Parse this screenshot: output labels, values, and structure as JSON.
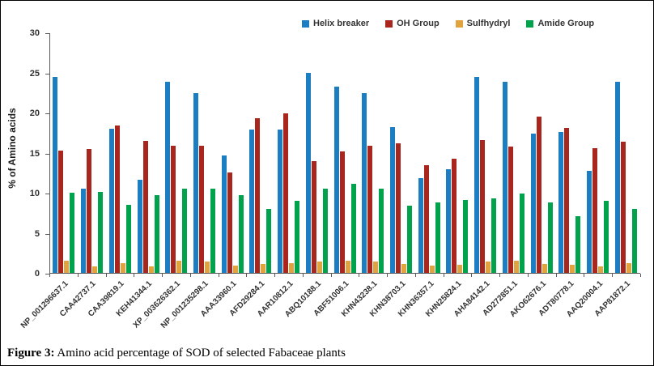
{
  "figure": {
    "caption_label": "Figure 3:",
    "caption_text": " Amino acid percentage of SOD of selected Fabaceae plants"
  },
  "chart_data": {
    "type": "bar",
    "title": "",
    "xlabel": "",
    "ylabel": "% of Amino acids",
    "ylim": [
      0,
      30
    ],
    "yticks": [
      0,
      5,
      10,
      15,
      20,
      25,
      30
    ],
    "grid": false,
    "legend_position": "top",
    "categories": [
      "NP_001296637.1",
      "CAA42737.1",
      "CAA39819.1",
      "KEH41344.1",
      "XP_003626362.1",
      "NP_001235298.1",
      "AAA33960.1",
      "AFD29284.1",
      "AAR10812.1",
      "ABQ10188.1",
      "ABF51006.1",
      "KHN43238.1",
      "KHN38703.1",
      "KHN36357.1",
      "KHN25824.1",
      "AHA84142.1",
      "AD272851.1",
      "AKO62676.1",
      "ADT80778.1",
      "AAQ20004.1",
      "AAP81872.1"
    ],
    "series": [
      {
        "name": "Helix breaker",
        "color": "#1B7EC2",
        "values": [
          24.4,
          10.5,
          18.0,
          11.6,
          23.8,
          22.4,
          14.7,
          17.9,
          17.9,
          25.0,
          23.2,
          22.4,
          18.2,
          11.8,
          12.9,
          24.4,
          23.8,
          17.4,
          17.6,
          12.7,
          23.8
        ]
      },
      {
        "name": "OH Group",
        "color": "#A8261D",
        "values": [
          15.3,
          15.5,
          18.4,
          16.5,
          15.9,
          15.9,
          12.5,
          19.3,
          19.9,
          13.9,
          15.2,
          15.9,
          16.2,
          13.4,
          14.2,
          16.6,
          15.8,
          19.5,
          18.1,
          15.6,
          16.4
        ]
      },
      {
        "name": "Sulfhydryl",
        "color": "#E0A33E",
        "values": [
          1.5,
          0.8,
          1.2,
          0.8,
          1.5,
          1.4,
          0.9,
          1.1,
          1.2,
          1.4,
          1.5,
          1.4,
          1.1,
          0.9,
          1.0,
          1.4,
          1.5,
          1.1,
          1.0,
          0.8,
          1.2
        ]
      },
      {
        "name": "Amide Group",
        "color": "#00A24B",
        "values": [
          10.0,
          10.1,
          8.5,
          9.7,
          10.5,
          10.5,
          9.7,
          8.0,
          9.0,
          10.5,
          11.1,
          10.5,
          8.4,
          8.8,
          9.1,
          9.3,
          9.9,
          8.8,
          7.1,
          9.0,
          8.0
        ]
      }
    ]
  }
}
